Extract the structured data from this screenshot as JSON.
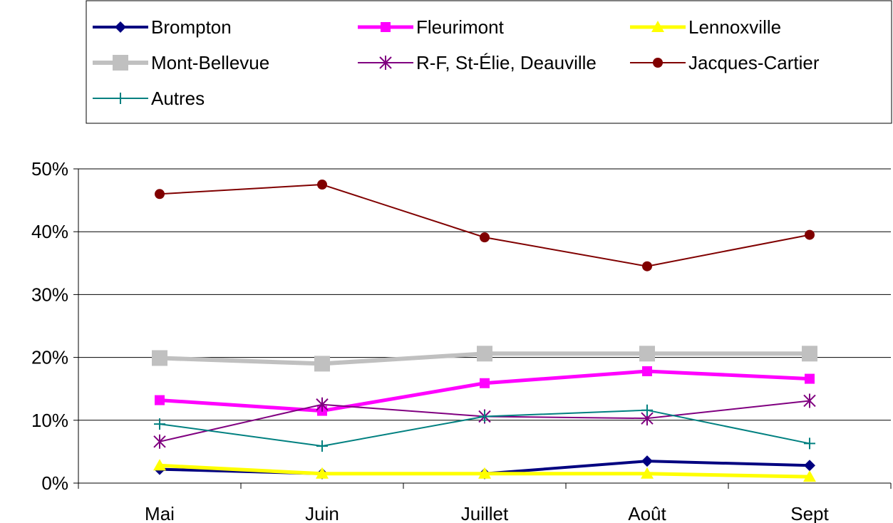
{
  "chart_data": {
    "type": "line",
    "title": "",
    "xlabel": "",
    "ylabel": "",
    "categories": [
      "Mai",
      "Juin",
      "Juillet",
      "Août",
      "Sept"
    ],
    "ylim": [
      0,
      0.5
    ],
    "yticks": [
      0,
      0.1,
      0.2,
      0.3,
      0.4,
      0.5
    ],
    "ytick_labels": [
      "0%",
      "10%",
      "20%",
      "30%",
      "40%",
      "50%"
    ],
    "grid": "horizontal",
    "legend_position": "top",
    "series": [
      {
        "name": "Brompton",
        "color": "#000080",
        "marker": "diamond",
        "values": [
          0.022,
          0.015,
          0.015,
          0.035,
          0.028
        ]
      },
      {
        "name": "Fleurimont",
        "color": "#ff00ff",
        "marker": "square",
        "values": [
          0.132,
          0.115,
          0.159,
          0.178,
          0.166
        ]
      },
      {
        "name": "Lennoxville",
        "color": "#ffff00",
        "marker": "triangle",
        "values": [
          0.028,
          0.015,
          0.015,
          0.015,
          0.01
        ]
      },
      {
        "name": "Mont-Bellevue",
        "color": "#c0c0c0",
        "marker": "square",
        "values": [
          0.199,
          0.19,
          0.206,
          0.206,
          0.206
        ]
      },
      {
        "name": "R-F, St-Élie, Deauville",
        "color": "#800080",
        "marker": "star",
        "values": [
          0.066,
          0.125,
          0.106,
          0.103,
          0.131
        ]
      },
      {
        "name": "Jacques-Cartier",
        "color": "#800000",
        "marker": "circle",
        "values": [
          0.46,
          0.475,
          0.391,
          0.345,
          0.395
        ]
      },
      {
        "name": "Autres",
        "color": "#008080",
        "marker": "plus",
        "values": [
          0.094,
          0.059,
          0.106,
          0.116,
          0.063
        ]
      }
    ]
  }
}
